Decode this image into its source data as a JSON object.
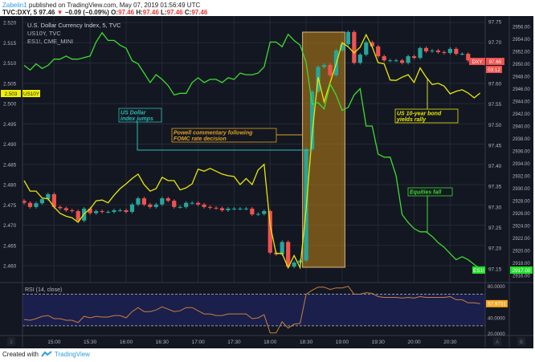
{
  "header": {
    "author": "Zabelin1",
    "published": "published on TradingView.com, May 07, 2019 01:56:49 UTC",
    "symbol": "TVC:DXY, 5",
    "last": "97.46",
    "change_icon": "triangle-down-icon",
    "change": "−0.09 (−0.09%)",
    "o_label": "O:",
    "o": "97.46",
    "h_label": "H:",
    "h": "97.46",
    "l_label": "L:",
    "l": "97.46",
    "c_label": "C:",
    "c": "97.46"
  },
  "legend": [
    "U.S. Dollar Currency Index, 5, TVC",
    "US10Y, TVC",
    "ES1!, CME_MINI"
  ],
  "annotations": {
    "dollar": [
      "US Dollar",
      "index jumps"
    ],
    "powell": [
      "Powell commentary following",
      "FOMC rate decision"
    ],
    "bonds": [
      "US 10-year bond",
      "yields rally"
    ],
    "equities": [
      "Equities fall"
    ]
  },
  "price_labels": {
    "us10y_value": "2.503",
    "us10y_name": "US10Y",
    "dxy_name": "DXY",
    "dxy_value": "97.65",
    "dxy_countdown": "03:12",
    "es_name": "ES1!",
    "es_value": "2917.00",
    "rsi_value": "57.9731"
  },
  "rsi_title": "RSI (14, close)",
  "axis_buttons": {
    "left": "2",
    "a": "A",
    "b": "B"
  },
  "footer": {
    "created": "Created with",
    "brand": "TradingView",
    "logo_icon": "tradingview-logo-icon"
  },
  "colors": {
    "background": "#131722",
    "grid": "#242936",
    "up": "#26a69a",
    "down": "#ef5350",
    "us10y": "#e8e800",
    "es": "#3ddc2f",
    "rsi": "#c8803c",
    "highlight": "#b07a18",
    "dollar_note": "#2bbcb4",
    "powell_note": "#e0a020"
  },
  "chart_data": {
    "type": "line",
    "x": [
      "14:35",
      "14:40",
      "14:45",
      "14:50",
      "14:55",
      "15:00",
      "15:05",
      "15:10",
      "15:15",
      "15:20",
      "15:25",
      "15:30",
      "15:35",
      "15:40",
      "15:45",
      "15:50",
      "15:55",
      "16:00",
      "16:05",
      "16:10",
      "16:15",
      "16:20",
      "16:25",
      "16:30",
      "16:35",
      "16:40",
      "16:45",
      "16:50",
      "16:55",
      "17:00",
      "17:05",
      "17:10",
      "17:15",
      "17:20",
      "17:25",
      "17:30",
      "17:35",
      "17:40",
      "17:45",
      "17:50",
      "17:55",
      "18:00",
      "18:05",
      "18:10",
      "18:15",
      "18:20",
      "18:25",
      "18:30",
      "18:35",
      "18:40",
      "18:45",
      "18:50",
      "18:55",
      "19:00",
      "19:05",
      "19:10",
      "19:15",
      "19:20",
      "19:25",
      "19:30",
      "19:35",
      "19:40",
      "19:45",
      "19:50",
      "19:55",
      "20:00",
      "20:05",
      "20:10",
      "20:15",
      "20:20",
      "20:25",
      "20:30",
      "20:35",
      "20:40",
      "20:45",
      "20:50",
      "20:55"
    ],
    "x_ticks": [
      "15:00",
      "15:30",
      "16:00",
      "16:30",
      "17:00",
      "17:30",
      "18:00",
      "18:30",
      "19:00",
      "19:30",
      "20:00",
      "20:30"
    ],
    "series": [
      {
        "name": "U.S. Dollar Currency Index",
        "style": "candlestick",
        "axis": "right",
        "field": "close",
        "values": [
          97.31,
          97.3,
          97.309,
          97.319,
          97.331,
          97.3,
          97.297,
          97.292,
          97.29,
          97.267,
          97.296,
          97.285,
          97.29,
          97.288,
          97.288,
          97.292,
          97.292,
          97.288,
          97.306,
          97.321,
          97.306,
          97.3,
          97.306,
          97.321,
          97.315,
          97.3,
          97.3,
          97.31,
          97.31,
          97.306,
          97.3,
          97.298,
          97.297,
          97.292,
          97.296,
          97.296,
          97.296,
          97.296,
          97.282,
          97.283,
          97.29,
          97.189,
          97.185,
          97.215,
          97.155,
          97.165,
          97.17,
          97.44,
          97.58,
          97.64,
          97.645,
          97.62,
          97.68,
          97.695,
          97.725,
          97.65,
          97.67,
          97.7,
          97.69,
          97.666,
          97.656,
          97.656,
          97.656,
          97.65,
          97.666,
          97.662,
          97.686,
          97.678,
          97.68,
          97.676,
          97.674,
          97.684,
          97.672,
          97.672,
          97.656,
          97.654,
          97.65
        ]
      },
      {
        "name": "US10Y",
        "style": "line",
        "axis": "left",
        "values": [
          2.481,
          2.4784,
          2.4784,
          2.4767,
          2.4765,
          2.4745,
          2.4729,
          2.4722,
          2.4718,
          2.4707,
          2.4728,
          2.474,
          2.476,
          2.4762,
          2.4755,
          2.4774,
          2.479,
          2.4802,
          2.4815,
          2.4826,
          2.48,
          2.4784,
          2.479,
          2.4818,
          2.481,
          2.481,
          2.4787,
          2.4792,
          2.4802,
          2.4838,
          2.4833,
          2.484,
          2.4833,
          2.4826,
          2.4822,
          2.482,
          2.48,
          2.4815,
          2.48,
          2.4836,
          2.485,
          2.47,
          2.463,
          2.463,
          2.4595,
          2.4625,
          2.4595,
          2.474,
          2.4925,
          2.5065,
          2.5004,
          2.5052,
          2.5097,
          2.515,
          2.514,
          2.5125,
          2.5139,
          2.517,
          2.514,
          2.5101,
          2.5098,
          2.5058,
          2.5057,
          2.5065,
          2.5071,
          2.5052,
          2.5088,
          2.5065,
          2.5047,
          2.505,
          2.5043,
          2.5024,
          2.503,
          2.5034,
          2.5026,
          2.5014,
          2.5026
        ]
      },
      {
        "name": "ES1!",
        "style": "line",
        "axis": "right-2",
        "values": [
          2949.75,
          2949.0,
          2950.0,
          2949.25,
          2949.75,
          2950.75,
          2950.75,
          2951.25,
          2950.75,
          2950.75,
          2951.0,
          2951.25,
          2953.5,
          2955.0,
          2953.75,
          2953.75,
          2953.0,
          2952.5,
          2950.5,
          2950.0,
          2948.5,
          2947.0,
          2948.25,
          2947.5,
          2946.5,
          2945.0,
          2945.25,
          2945.25,
          2947.0,
          2947.75,
          2947.0,
          2947.5,
          2947.5,
          2947.0,
          2947.75,
          2947.5,
          2948.5,
          2948.25,
          2948.25,
          2948.5,
          2949.5,
          2953.5,
          2953.5,
          2952.75,
          2954.75,
          2953.75,
          2953.0,
          2950.25,
          2943.5,
          2943.75,
          2942.75,
          2946.75,
          2945.0,
          2942.5,
          2943.0,
          2945.0,
          2946.0,
          2940.0,
          2940.0,
          2935.5,
          2935.0,
          2935.0,
          2932.0,
          2925.75,
          2924.5,
          2923.5,
          2923.0,
          2923.0,
          2922.25,
          2921.25,
          2920.5,
          2919.5,
          2918.5,
          2919.0,
          2918.5,
          2917.75,
          2917.0
        ]
      },
      {
        "name": "RSI (14, close)",
        "style": "line",
        "pane": "lower",
        "values": [
          38,
          37,
          39,
          42,
          43,
          39,
          39,
          37,
          37,
          34,
          42,
          40,
          42,
          41,
          41,
          43,
          43,
          40,
          48,
          53,
          48,
          48,
          50,
          54,
          51,
          48,
          49,
          53,
          53,
          49,
          45,
          45,
          43,
          43,
          45,
          45,
          45,
          45,
          39,
          40,
          44,
          21,
          21,
          35,
          27,
          32,
          33,
          70,
          75,
          79,
          79,
          76,
          78,
          78,
          80,
          70,
          70,
          72,
          71,
          67,
          66,
          66,
          66,
          65,
          66,
          65,
          67,
          66,
          66,
          66,
          66,
          67,
          63,
          63,
          59,
          59,
          57.9731
        ]
      }
    ],
    "left_axis": {
      "ticks": [
        "2.520",
        "2.515",
        "2.510",
        "2.505",
        "2.500",
        "2.495",
        "2.490",
        "2.485",
        "2.480",
        "2.475",
        "2.470",
        "2.465",
        "2.460"
      ],
      "range": [
        2.458,
        2.521
      ]
    },
    "right_axis": {
      "ticks": [
        "97.75",
        "97.70",
        "97.65",
        "97.60",
        "97.55",
        "97.50",
        "97.45",
        "97.40",
        "97.35",
        "97.30",
        "97.25",
        "97.20",
        "97.15"
      ],
      "range": [
        97.14,
        97.75
      ]
    },
    "right_axis_2": {
      "ticks": [
        "2956.00",
        "2954.00",
        "2952.00",
        "2950.00",
        "2948.00",
        "2946.00",
        "2944.00",
        "2942.00",
        "2940.00",
        "2938.00",
        "2936.00",
        "2934.00",
        "2932.00",
        "2930.00",
        "2928.00",
        "2926.00",
        "2924.00",
        "2922.00",
        "2920.00",
        "2918.00",
        "2916.00"
      ],
      "range": [
        2916,
        2956
      ]
    },
    "rsi_axis": {
      "ticks": [
        "80.0000",
        "40.0000",
        "20.0000"
      ],
      "bands": [
        30,
        70
      ]
    },
    "highlight_period": [
      "18:25",
      "19:05"
    ],
    "grid": true
  }
}
